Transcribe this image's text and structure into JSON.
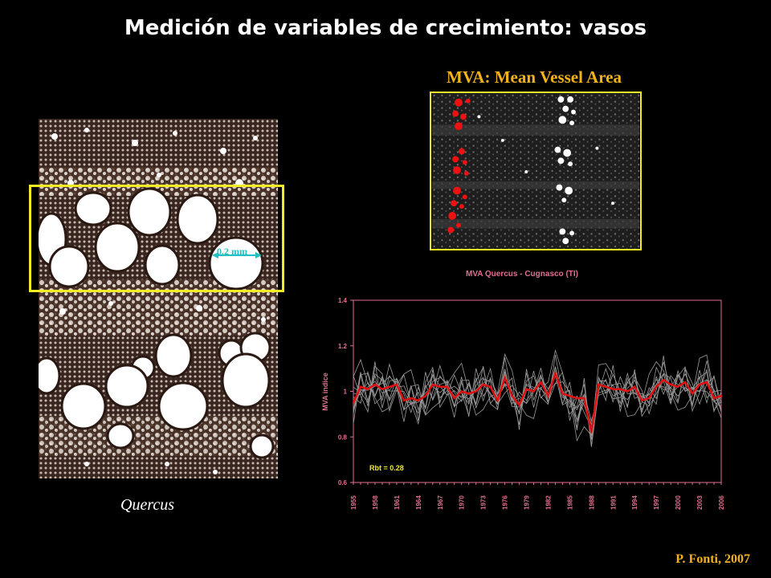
{
  "title": "Medición de variables de crecimiento: vasos",
  "mva_heading": "MVA: Mean Vessel Area",
  "micrograph": {
    "scale_label": "0.2 mm",
    "caption": "Quercus"
  },
  "credit": "P. Fonti, 2007",
  "colors": {
    "accent_yellow": "#f2ec24",
    "heading_gold": "#f2b21a",
    "mean_line": "#e01010",
    "sample_lines": "#9a9a9a",
    "axis_pink": "#e07090",
    "scale_cyan": "#22c0c0"
  },
  "chart_data": {
    "type": "line",
    "title": "MVA Quercus - Cugnasco (TI)",
    "xlabel": "",
    "ylabel": "MVA indice",
    "ylim": [
      0.6,
      1.4
    ],
    "yticks": [
      "0.6",
      "0.8",
      "1",
      "1.2",
      "1.4"
    ],
    "xticks": [
      "1955",
      "1958",
      "1961",
      "1964",
      "1967",
      "1970",
      "1973",
      "1976",
      "1979",
      "1982",
      "1985",
      "1988",
      "1991",
      "1994",
      "1997",
      "2000",
      "2003",
      "2006"
    ],
    "annotation": "Rbt = 0.28",
    "x": [
      1955,
      1956,
      1957,
      1958,
      1959,
      1960,
      1961,
      1962,
      1963,
      1964,
      1965,
      1966,
      1967,
      1968,
      1969,
      1970,
      1971,
      1972,
      1973,
      1974,
      1975,
      1976,
      1977,
      1978,
      1979,
      1980,
      1981,
      1982,
      1983,
      1984,
      1985,
      1986,
      1987,
      1988,
      1989,
      1990,
      1991,
      1992,
      1993,
      1994,
      1995,
      1996,
      1997,
      1998,
      1999,
      2000,
      2001,
      2002,
      2003,
      2004,
      2005,
      2006
    ],
    "series": [
      {
        "values": [
          0.95,
          1.02,
          1.01,
          1.03,
          1.01,
          1.02,
          1.03,
          0.96,
          0.97,
          0.96,
          0.98,
          1.03,
          1.02,
          1.02,
          0.97,
          1.0,
          0.99,
          1.0,
          1.03,
          1.02,
          0.96,
          1.06,
          0.98,
          0.94,
          1.01,
          1.0,
          1.04,
          0.98,
          1.08,
          0.99,
          0.98,
          0.97,
          0.97,
          0.82,
          1.03,
          1.02,
          1.01,
          1.01,
          1.0,
          1.02,
          0.96,
          0.97,
          1.02,
          1.05,
          1.03,
          1.02,
          1.04,
          0.99,
          1.03,
          1.04,
          0.97,
          0.98
        ]
      }
    ]
  }
}
